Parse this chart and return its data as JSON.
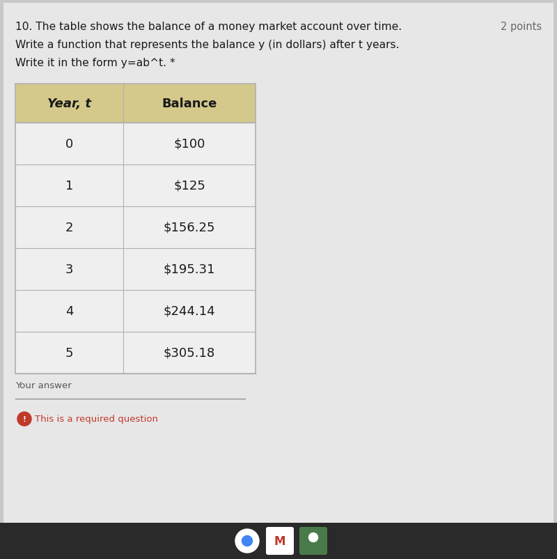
{
  "title_line1": "10. The table shows the balance of a money market account over time.",
  "title_line2": "Write a function that represents the balance y (in dollars) after t years.",
  "title_line3": "Write it in the form y=ab^t. *",
  "points_text": "2 points",
  "col1_header": "Year, t",
  "col2_header": "Balance",
  "years": [
    "0",
    "1",
    "2",
    "3",
    "4",
    "5"
  ],
  "balances": [
    "$100",
    "$125",
    "$156.25",
    "$195.31",
    "$244.14",
    "$305.18"
  ],
  "your_answer_text": "Your answer",
  "required_text": "This is a required question",
  "table_header_bg": "#d4c98a",
  "table_border_color": "#b0b0b0",
  "text_color": "#1a1a1a",
  "required_color": "#c0392b",
  "your_answer_color": "#555555",
  "points_color": "#666666",
  "outer_bg": "#c8c8c8",
  "card_bg": "#e8e7e7",
  "row_bg": "#f0efef",
  "taskbar_bg": "#2a2a2a"
}
